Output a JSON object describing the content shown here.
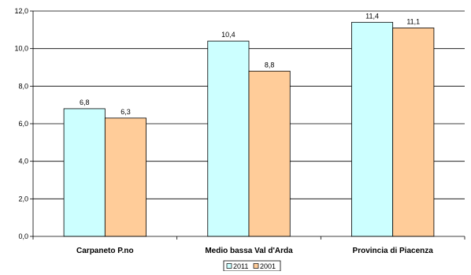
{
  "chart_data": {
    "type": "bar",
    "categories": [
      "Carpaneto P.no",
      "Medio bassa Val d'Arda",
      "Provincia di Piacenza"
    ],
    "series": [
      {
        "name": "2011",
        "values": [
          6.8,
          10.4,
          11.4
        ],
        "labels": [
          "6,8",
          "10,4",
          "11,4"
        ],
        "color": "#ccffff"
      },
      {
        "name": "2001",
        "values": [
          6.3,
          8.8,
          11.1
        ],
        "labels": [
          "6,3",
          "8,8",
          "11,1"
        ],
        "color": "#ffcc99"
      }
    ],
    "ylim": [
      0,
      12
    ],
    "yticks": [
      0,
      2,
      4,
      6,
      8,
      10,
      12
    ],
    "ytick_labels": [
      "0,0",
      "2,0",
      "4,0",
      "6,0",
      "8,0",
      "10,0",
      "12,0"
    ],
    "grid": true,
    "legend_position": "bottom-center",
    "title": "",
    "xlabel": "",
    "ylabel": ""
  }
}
